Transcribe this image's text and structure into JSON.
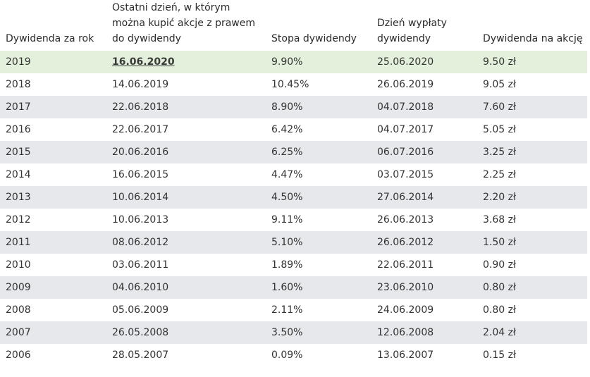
{
  "table": {
    "headers": [
      "Dywidenda za rok",
      "Ostatni dzień, w którym można kupić akcje z prawem do dywidendy",
      "Stopa dywidendy",
      "Dzień wypłaty dywidendy",
      "Dywidenda na akcję"
    ],
    "rows": [
      {
        "year": "2019",
        "last_day": "16.06.2020",
        "yield": "9.90%",
        "payment_day": "25.06.2020",
        "per_share": "9.50 zł"
      },
      {
        "year": "2018",
        "last_day": "14.06.2019",
        "yield": "10.45%",
        "payment_day": "26.06.2019",
        "per_share": "9.05 zł"
      },
      {
        "year": "2017",
        "last_day": "22.06.2018",
        "yield": "8.90%",
        "payment_day": "04.07.2018",
        "per_share": "7.60 zł"
      },
      {
        "year": "2016",
        "last_day": "22.06.2017",
        "yield": "6.42%",
        "payment_day": "04.07.2017",
        "per_share": "5.05 zł"
      },
      {
        "year": "2015",
        "last_day": "20.06.2016",
        "yield": "6.25%",
        "payment_day": "06.07.2016",
        "per_share": "3.25 zł"
      },
      {
        "year": "2014",
        "last_day": "16.06.2015",
        "yield": "4.47%",
        "payment_day": "03.07.2015",
        "per_share": "2.25 zł"
      },
      {
        "year": "2013",
        "last_day": "10.06.2014",
        "yield": "4.50%",
        "payment_day": "27.06.2014",
        "per_share": "2.20 zł"
      },
      {
        "year": "2012",
        "last_day": "10.06.2013",
        "yield": "9.11%",
        "payment_day": "26.06.2013",
        "per_share": "3.68 zł"
      },
      {
        "year": "2011",
        "last_day": "08.06.2012",
        "yield": "5.10%",
        "payment_day": "26.06.2012",
        "per_share": "1.50 zł"
      },
      {
        "year": "2010",
        "last_day": "03.06.2011",
        "yield": "1.89%",
        "payment_day": "22.06.2011",
        "per_share": "0.90 zł"
      },
      {
        "year": "2009",
        "last_day": "04.06.2010",
        "yield": "1.60%",
        "payment_day": "23.06.2010",
        "per_share": "0.80 zł"
      },
      {
        "year": "2008",
        "last_day": "05.06.2009",
        "yield": "2.11%",
        "payment_day": "24.06.2009",
        "per_share": "0.80 zł"
      },
      {
        "year": "2007",
        "last_day": "26.05.2008",
        "yield": "3.50%",
        "payment_day": "12.06.2008",
        "per_share": "2.04 zł"
      },
      {
        "year": "2006",
        "last_day": "28.05.2007",
        "yield": "0.09%",
        "payment_day": "13.06.2007",
        "per_share": "0.15 zł"
      }
    ]
  },
  "colors": {
    "highlight": "#e3f0db",
    "stripe": "#e6e8ec",
    "text": "#333333"
  }
}
